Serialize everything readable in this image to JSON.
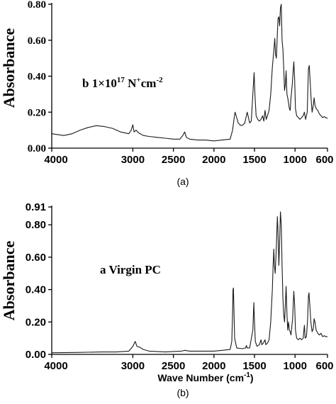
{
  "chart_data": [
    {
      "type": "line",
      "caption": "(a)",
      "ylabel": "Absorbance",
      "xlabel": "",
      "xlim": [
        4000,
        600
      ],
      "x_reversed": true,
      "ylim": [
        0,
        0.8
      ],
      "xticks": [
        4000,
        3000,
        2500,
        2000,
        1500,
        1000,
        600
      ],
      "yticks": [
        {
          "value": 0.0,
          "label": "0.00"
        },
        {
          "value": 0.2,
          "label": "0.20"
        },
        {
          "value": 0.4,
          "label": "0.40"
        },
        {
          "value": 0.6,
          "label": "0.60"
        },
        {
          "value": 0.8,
          "label": "0.80"
        }
      ],
      "annotation": {
        "prefix": "b 1×10",
        "exp": "17",
        "mid": " N",
        "sup2": "+",
        "unit": "cm",
        "sup3": "-2"
      },
      "series": [
        {
          "points": [
            [
              4000,
              0.08
            ],
            [
              3850,
              0.07
            ],
            [
              3750,
              0.08
            ],
            [
              3650,
              0.1
            ],
            [
              3550,
              0.115
            ],
            [
              3450,
              0.125
            ],
            [
              3350,
              0.12
            ],
            [
              3250,
              0.11
            ],
            [
              3150,
              0.09
            ],
            [
              3050,
              0.08
            ],
            [
              3020,
              0.1
            ],
            [
              3000,
              0.13
            ],
            [
              2985,
              0.09
            ],
            [
              2960,
              0.1
            ],
            [
              2930,
              0.085
            ],
            [
              2870,
              0.07
            ],
            [
              2800,
              0.065
            ],
            [
              2700,
              0.06
            ],
            [
              2600,
              0.055
            ],
            [
              2500,
              0.05
            ],
            [
              2420,
              0.05
            ],
            [
              2385,
              0.07
            ],
            [
              2360,
              0.09
            ],
            [
              2340,
              0.06
            ],
            [
              2300,
              0.05
            ],
            [
              2200,
              0.045
            ],
            [
              2100,
              0.045
            ],
            [
              2000,
              0.04
            ],
            [
              1900,
              0.045
            ],
            [
              1800,
              0.05
            ],
            [
              1770,
              0.1
            ],
            [
              1750,
              0.17
            ],
            [
              1740,
              0.2
            ],
            [
              1720,
              0.17
            ],
            [
              1700,
              0.14
            ],
            [
              1680,
              0.13
            ],
            [
              1660,
              0.125
            ],
            [
              1640,
              0.13
            ],
            [
              1620,
              0.14
            ],
            [
              1600,
              0.18
            ],
            [
              1590,
              0.2
            ],
            [
              1580,
              0.18
            ],
            [
              1560,
              0.14
            ],
            [
              1540,
              0.15
            ],
            [
              1520,
              0.3
            ],
            [
              1505,
              0.42
            ],
            [
              1495,
              0.3
            ],
            [
              1480,
              0.18
            ],
            [
              1460,
              0.16
            ],
            [
              1440,
              0.15
            ],
            [
              1420,
              0.16
            ],
            [
              1400,
              0.18
            ],
            [
              1385,
              0.15
            ],
            [
              1370,
              0.21
            ],
            [
              1355,
              0.16
            ],
            [
              1340,
              0.18
            ],
            [
              1320,
              0.21
            ],
            [
              1300,
              0.3
            ],
            [
              1280,
              0.45
            ],
            [
              1260,
              0.55
            ],
            [
              1250,
              0.61
            ],
            [
              1240,
              0.52
            ],
            [
              1230,
              0.5
            ],
            [
              1220,
              0.62
            ],
            [
              1210,
              0.72
            ],
            [
              1200,
              0.73
            ],
            [
              1190,
              0.68
            ],
            [
              1180,
              0.78
            ],
            [
              1170,
              0.8
            ],
            [
              1160,
              0.6
            ],
            [
              1150,
              0.55
            ],
            [
              1140,
              0.45
            ],
            [
              1130,
              0.32
            ],
            [
              1120,
              0.35
            ],
            [
              1110,
              0.43
            ],
            [
              1100,
              0.3
            ],
            [
              1090,
              0.28
            ],
            [
              1080,
              0.25
            ],
            [
              1070,
              0.22
            ],
            [
              1060,
              0.21
            ],
            [
              1050,
              0.28
            ],
            [
              1035,
              0.35
            ],
            [
              1015,
              0.48
            ],
            [
              1005,
              0.38
            ],
            [
              995,
              0.22
            ],
            [
              980,
              0.18
            ],
            [
              960,
              0.17
            ],
            [
              940,
              0.16
            ],
            [
              920,
              0.17
            ],
            [
              900,
              0.18
            ],
            [
              885,
              0.2
            ],
            [
              870,
              0.16
            ],
            [
              850,
              0.2
            ],
            [
              835,
              0.44
            ],
            [
              825,
              0.46
            ],
            [
              815,
              0.38
            ],
            [
              800,
              0.26
            ],
            [
              790,
              0.2
            ],
            [
              775,
              0.24
            ],
            [
              765,
              0.28
            ],
            [
              755,
              0.24
            ],
            [
              740,
              0.22
            ],
            [
              720,
              0.21
            ],
            [
              700,
              0.19
            ],
            [
              680,
              0.18
            ],
            [
              660,
              0.17
            ],
            [
              640,
              0.175
            ],
            [
              620,
              0.17
            ],
            [
              600,
              0.165
            ]
          ]
        }
      ]
    },
    {
      "type": "line",
      "caption": "(b)",
      "ylabel": "Absorbance",
      "xlabel": "Wave Number (cm",
      "xlabel_sup": "-1",
      "xlabel_end": ")",
      "xlim": [
        4000,
        600
      ],
      "x_reversed": true,
      "ylim": [
        0,
        0.91
      ],
      "xticks": [
        4000,
        3000,
        2500,
        2000,
        1500,
        1000,
        600
      ],
      "yticks": [
        {
          "value": 0.0,
          "label": "0.00"
        },
        {
          "value": 0.2,
          "label": "0.20"
        },
        {
          "value": 0.4,
          "label": "0.40"
        },
        {
          "value": 0.6,
          "label": "0.60"
        },
        {
          "value": 0.8,
          "label": "0.80"
        },
        {
          "value": 0.91,
          "label": "0.91"
        }
      ],
      "annotation": {
        "text": "a Virgin PC"
      },
      "series": [
        {
          "points": [
            [
              4000,
              0.01
            ],
            [
              3700,
              0.012
            ],
            [
              3400,
              0.015
            ],
            [
              3200,
              0.015
            ],
            [
              3050,
              0.02
            ],
            [
              3000,
              0.05
            ],
            [
              2970,
              0.08
            ],
            [
              2950,
              0.05
            ],
            [
              2920,
              0.045
            ],
            [
              2870,
              0.03
            ],
            [
              2800,
              0.02
            ],
            [
              2600,
              0.015
            ],
            [
              2400,
              0.02
            ],
            [
              2360,
              0.025
            ],
            [
              2300,
              0.02
            ],
            [
              2000,
              0.02
            ],
            [
              1900,
              0.025
            ],
            [
              1800,
              0.03
            ],
            [
              1780,
              0.08
            ],
            [
              1770,
              0.25
            ],
            [
              1765,
              0.4
            ],
            [
              1760,
              0.41
            ],
            [
              1755,
              0.3
            ],
            [
              1745,
              0.1
            ],
            [
              1720,
              0.04
            ],
            [
              1650,
              0.035
            ],
            [
              1610,
              0.04
            ],
            [
              1600,
              0.055
            ],
            [
              1590,
              0.04
            ],
            [
              1560,
              0.04
            ],
            [
              1520,
              0.15
            ],
            [
              1508,
              0.32
            ],
            [
              1500,
              0.2
            ],
            [
              1490,
              0.08
            ],
            [
              1470,
              0.05
            ],
            [
              1440,
              0.06
            ],
            [
              1420,
              0.09
            ],
            [
              1410,
              0.06
            ],
            [
              1390,
              0.07
            ],
            [
              1370,
              0.09
            ],
            [
              1360,
              0.06
            ],
            [
              1340,
              0.07
            ],
            [
              1320,
              0.09
            ],
            [
              1300,
              0.2
            ],
            [
              1280,
              0.4
            ],
            [
              1270,
              0.55
            ],
            [
              1262,
              0.65
            ],
            [
              1255,
              0.55
            ],
            [
              1245,
              0.5
            ],
            [
              1235,
              0.6
            ],
            [
              1225,
              0.75
            ],
            [
              1218,
              0.85
            ],
            [
              1212,
              0.78
            ],
            [
              1200,
              0.55
            ],
            [
              1190,
              0.7
            ],
            [
              1180,
              0.88
            ],
            [
              1170,
              0.8
            ],
            [
              1160,
              0.55
            ],
            [
              1150,
              0.35
            ],
            [
              1140,
              0.25
            ],
            [
              1130,
              0.2
            ],
            [
              1120,
              0.3
            ],
            [
              1110,
              0.42
            ],
            [
              1100,
              0.25
            ],
            [
              1090,
              0.15
            ],
            [
              1080,
              0.2
            ],
            [
              1070,
              0.15
            ],
            [
              1060,
              0.14
            ],
            [
              1050,
              0.12
            ],
            [
              1030,
              0.22
            ],
            [
              1015,
              0.39
            ],
            [
              1005,
              0.3
            ],
            [
              995,
              0.15
            ],
            [
              980,
              0.1
            ],
            [
              960,
              0.09
            ],
            [
              940,
              0.1
            ],
            [
              920,
              0.09
            ],
            [
              900,
              0.1
            ],
            [
              885,
              0.18
            ],
            [
              875,
              0.1
            ],
            [
              860,
              0.11
            ],
            [
              845,
              0.22
            ],
            [
              835,
              0.36
            ],
            [
              828,
              0.38
            ],
            [
              818,
              0.3
            ],
            [
              805,
              0.2
            ],
            [
              790,
              0.14
            ],
            [
              775,
              0.16
            ],
            [
              765,
              0.22
            ],
            [
              755,
              0.2
            ],
            [
              740,
              0.15
            ],
            [
              720,
              0.13
            ],
            [
              700,
              0.12
            ],
            [
              680,
              0.13
            ],
            [
              660,
              0.11
            ],
            [
              640,
              0.115
            ],
            [
              620,
              0.11
            ],
            [
              600,
              0.11
            ]
          ]
        }
      ]
    }
  ]
}
